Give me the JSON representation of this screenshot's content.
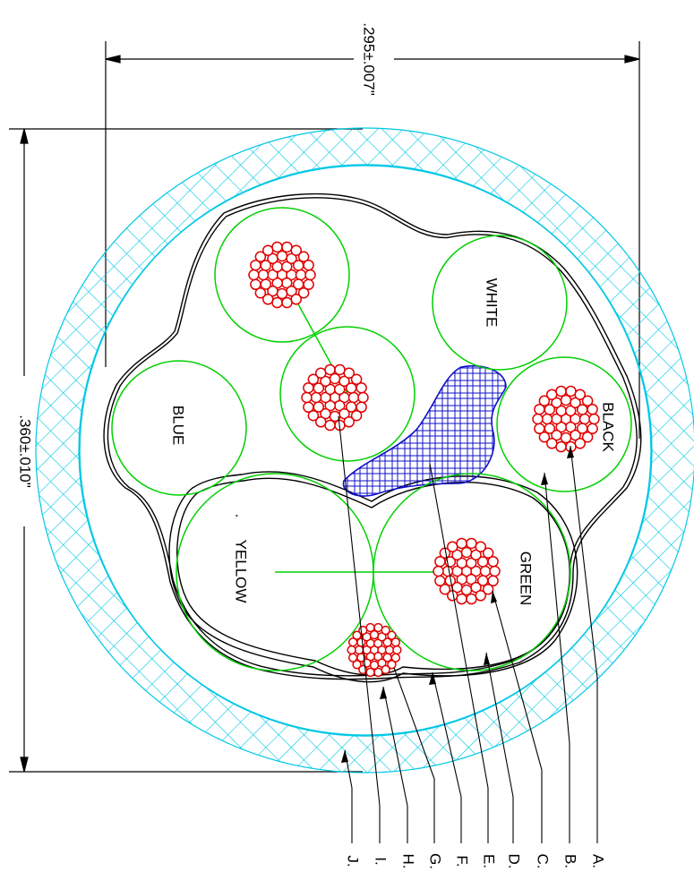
{
  "dimensions": {
    "width_label": ".295±.007\"",
    "height_label": ".360±.010\""
  },
  "conductors": {
    "white": "WHITE",
    "black": "BLACK",
    "blue": "BLUE",
    "yellow": "YELLOW",
    "green": "GREEN",
    "dot": "."
  },
  "callouts": [
    "A.",
    "B.",
    "C.",
    "D.",
    "E.",
    "F.",
    "G.",
    "H.",
    "I.",
    "J."
  ],
  "colors": {
    "braid": "#00c8e6",
    "insulation": "#00d000",
    "strand": "#e00000",
    "filler": "#1010c8",
    "line": "#000000"
  }
}
